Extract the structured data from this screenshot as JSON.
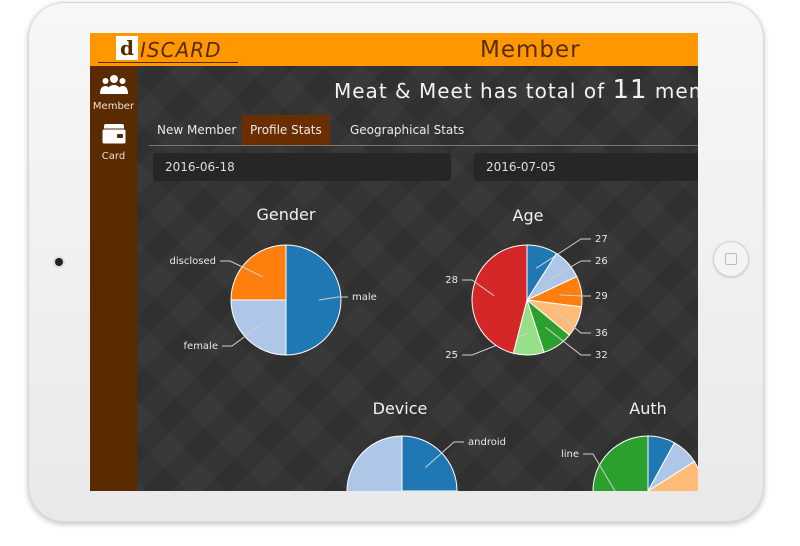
{
  "header": {
    "logo_d": "d",
    "logo_text": "ISCARD",
    "title": "Member"
  },
  "sidebar": {
    "items": [
      {
        "label": "Member",
        "icon": "group-icon"
      },
      {
        "label": "Card",
        "icon": "wallet-card-icon"
      }
    ]
  },
  "summary": {
    "prefix": "Meat & Meet has total of",
    "count": "11",
    "suffix": "membe"
  },
  "tabs": [
    {
      "label": "New Member",
      "active": false
    },
    {
      "label": "Profile Stats",
      "active": true
    },
    {
      "label": "Geographical Stats",
      "active": false
    }
  ],
  "date_range": {
    "start": "2016-06-18",
    "end": "2016-07-05"
  },
  "colors": {
    "accent": "#ff9800",
    "sidebar": "#5a2a00",
    "active_tab": "#6b2e00",
    "blue": "#1f77b4",
    "light_blue": "#aec7e8",
    "orange": "#ff7f0e",
    "light_orange": "#ffbb78",
    "green": "#2ca02c",
    "light_green": "#98df8a",
    "red": "#d62728"
  },
  "chart_data": [
    {
      "type": "pie",
      "title": "Gender",
      "slices": [
        {
          "label": "male",
          "value": 50,
          "color": "#1f77b4"
        },
        {
          "label": "female",
          "value": 25,
          "color": "#aec7e8"
        },
        {
          "label": "disclosed",
          "value": 25,
          "color": "#ff7f0e"
        }
      ]
    },
    {
      "type": "pie",
      "title": "Age",
      "slices": [
        {
          "label": "27",
          "value": 9,
          "color": "#1f77b4"
        },
        {
          "label": "26",
          "value": 9,
          "color": "#aec7e8"
        },
        {
          "label": "29",
          "value": 9,
          "color": "#ff7f0e"
        },
        {
          "label": "36",
          "value": 9,
          "color": "#ffbb78"
        },
        {
          "label": "32",
          "value": 9,
          "color": "#2ca02c"
        },
        {
          "label": "25",
          "value": 9,
          "color": "#98df8a"
        },
        {
          "label": "28",
          "value": 46,
          "color": "#d62728"
        }
      ]
    },
    {
      "type": "pie",
      "title": "Device",
      "slices": [
        {
          "label": "android",
          "value": 25,
          "color": "#1f77b4"
        },
        {
          "label": "",
          "value": 25,
          "color": "#aec7e8"
        },
        {
          "label": "",
          "value": 50,
          "color": "#aec7e8"
        }
      ]
    },
    {
      "type": "pie",
      "title": "Auth",
      "slices": [
        {
          "label": "",
          "value": 8,
          "color": "#1f77b4"
        },
        {
          "label": "",
          "value": 8,
          "color": "#aec7e8"
        },
        {
          "label": "",
          "value": 34,
          "color": "#ffbb78"
        },
        {
          "label": "line",
          "value": 50,
          "color": "#2ca02c"
        }
      ]
    }
  ]
}
